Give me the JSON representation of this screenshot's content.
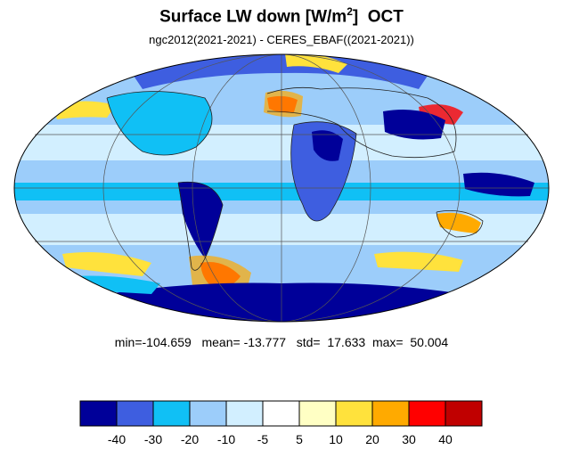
{
  "title": {
    "main": "Surface LW down [W/m",
    "superscript": "2",
    "close": "]",
    "month": "OCT"
  },
  "subtitle": "ngc2012(2021-2021) - CERES_EBAF((2021-2021))",
  "stats": {
    "min_label": "min=",
    "min": "-104.659",
    "mean_label": "mean=",
    "mean": "-13.777",
    "std_label": "std=",
    "std": "17.633",
    "max_label": "max=",
    "max": "50.004"
  },
  "colorbar": {
    "colors": [
      "#000099",
      "#3e5ee0",
      "#10c0f5",
      "#9ccdfa",
      "#d2efff",
      "#ffffff",
      "#ffffc4",
      "#ffe23c",
      "#ffaa00",
      "#ff0000",
      "#c00000"
    ],
    "tick_labels": [
      "-40",
      "-30",
      "-20",
      "-10",
      "-5",
      "5",
      "10",
      "20",
      "30",
      "40"
    ]
  },
  "map": {
    "projection": "mollweide",
    "grid": true,
    "coastlines": true,
    "colors": {
      "strong_negative": "#000099",
      "negative": "#3e5ee0",
      "moderate_negative": "#10c0f5",
      "weak_negative": "#9ccdfa",
      "slight_negative": "#d2efff",
      "near_zero": "#ffffff",
      "slight_positive": "#ffffc4",
      "positive": "#ffe23c",
      "moderate_positive": "#ffaa00",
      "strong_positive": "#ff0000"
    }
  }
}
